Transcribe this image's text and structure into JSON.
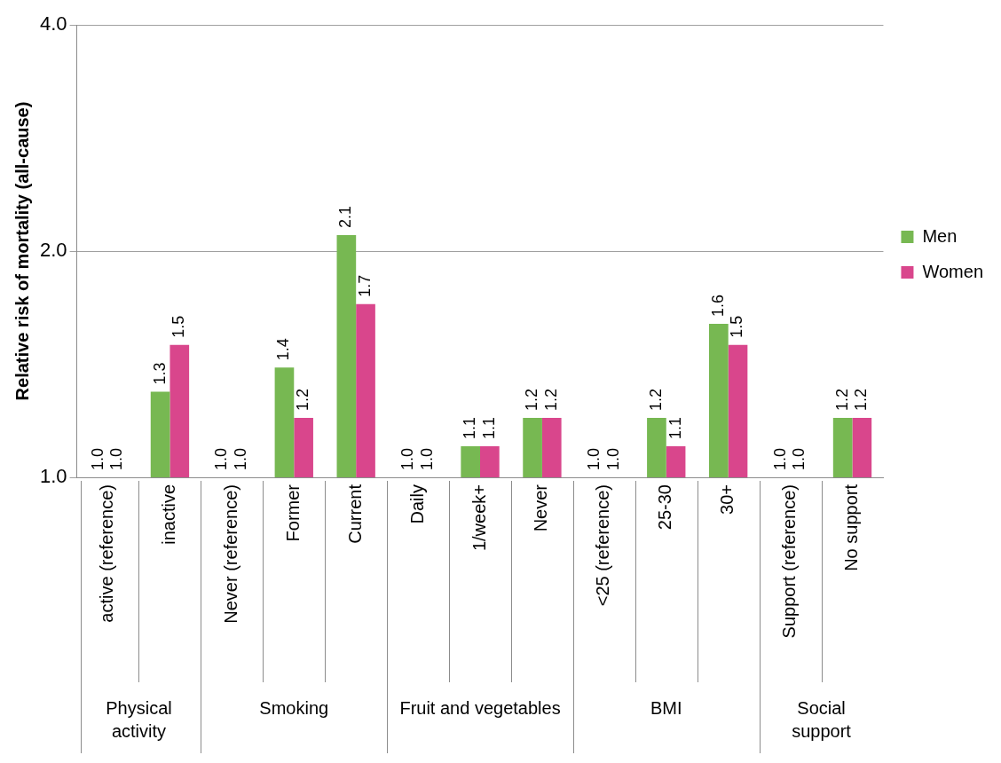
{
  "chart_data": {
    "type": "bar",
    "ylabel": "Relative risk of mortality (all-cause)",
    "log": true,
    "ylim": [
      1,
      4
    ],
    "yticks": [
      {
        "value": 1,
        "label": "1.0"
      },
      {
        "value": 2,
        "label": "2.0"
      },
      {
        "value": 4,
        "label": "4.0"
      }
    ],
    "grid": "y",
    "legend": "right",
    "categories": [
      "active (reference)",
      "inactive",
      "Never (reference)",
      "Former",
      "Current",
      "Daily",
      "1/week+",
      "Never",
      "<25 (reference)",
      "25-30",
      "30+",
      "Support (reference)",
      "No support"
    ],
    "series": [
      {
        "name": "Men",
        "color": "#77b852",
        "values": [
          1.0,
          1.3,
          1.0,
          1.4,
          2.1,
          1.0,
          1.1,
          1.2,
          1.0,
          1.2,
          1.6,
          1.0,
          1.2
        ],
        "value_labels": [
          "1.0",
          "1.3",
          "1.0",
          "1.4",
          "2.1",
          "1.0",
          "1.1",
          "1.2",
          "1.0",
          "1.2",
          "1.6",
          "1.0",
          "1.2"
        ]
      },
      {
        "name": "Women",
        "color": "#d9468c",
        "values": [
          1.0,
          1.5,
          1.0,
          1.2,
          1.7,
          1.0,
          1.1,
          1.2,
          1.0,
          1.1,
          1.5,
          1.0,
          1.2
        ],
        "value_labels": [
          "1.0",
          "1.5",
          "1.0",
          "1.2",
          "1.7",
          "1.0",
          "1.1",
          "1.2",
          "1.0",
          "1.1",
          "1.5",
          "1.0",
          "1.2"
        ]
      }
    ],
    "annotations": [
      "Physical activity",
      "Smoking",
      "Fruit and vegetables",
      "BMI",
      "Social support"
    ]
  }
}
